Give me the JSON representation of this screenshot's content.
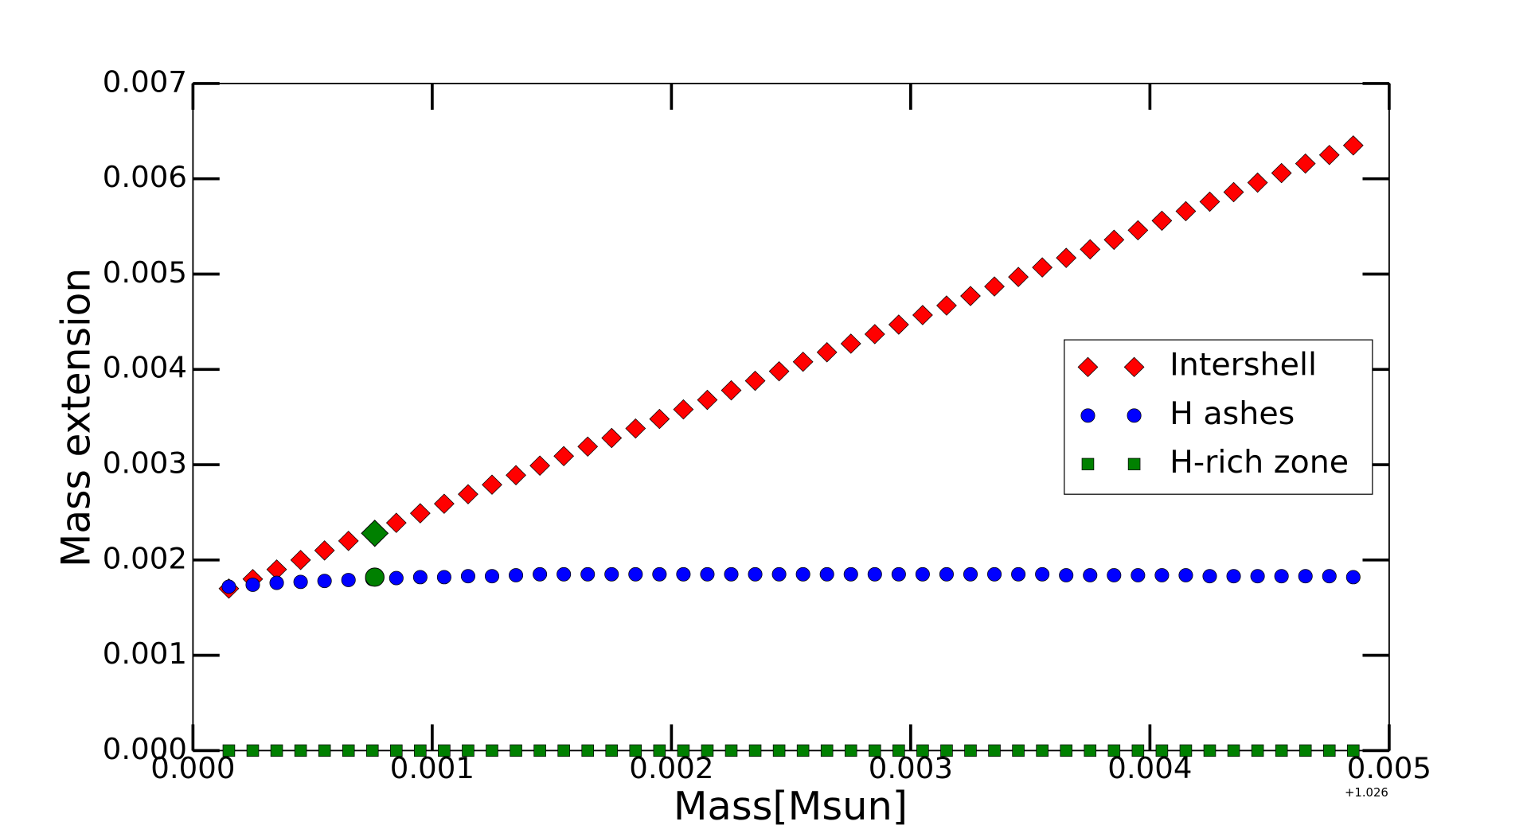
{
  "chart_data": {
    "type": "scatter",
    "xlabel": "Mass[Msun]",
    "ylabel": "Mass extension",
    "x_offset_label": "+1.026",
    "xlim": [
      0,
      0.005
    ],
    "ylim": [
      0,
      0.007
    ],
    "xticks": [
      {
        "value": 0,
        "label": "0.000"
      },
      {
        "value": 0.001,
        "label": "0.001"
      },
      {
        "value": 0.002,
        "label": "0.002"
      },
      {
        "value": 0.003,
        "label": "0.003"
      },
      {
        "value": 0.004,
        "label": "0.004"
      },
      {
        "value": 0.005,
        "label": "0.005"
      }
    ],
    "yticks": [
      {
        "value": 0,
        "label": "0.000"
      },
      {
        "value": 0.001,
        "label": "0.001"
      },
      {
        "value": 0.002,
        "label": "0.002"
      },
      {
        "value": 0.003,
        "label": "0.003"
      },
      {
        "value": 0.004,
        "label": "0.004"
      },
      {
        "value": 0.005,
        "label": "0.005"
      },
      {
        "value": 0.006,
        "label": "0.006"
      },
      {
        "value": 0.007,
        "label": "0.007"
      }
    ],
    "legend": "right",
    "x": [
      0.00015,
      0.00025,
      0.00035,
      0.00045,
      0.00055,
      0.00065,
      0.00075,
      0.00085,
      0.00095,
      0.00105,
      0.00115,
      0.00125,
      0.00135,
      0.00145,
      0.00155,
      0.00165,
      0.00175,
      0.00185,
      0.00195,
      0.00205,
      0.00215,
      0.00225,
      0.00235,
      0.00245,
      0.00255,
      0.00265,
      0.00275,
      0.00285,
      0.00295,
      0.00305,
      0.00315,
      0.00325,
      0.00335,
      0.00345,
      0.00355,
      0.00365,
      0.00375,
      0.00385,
      0.00395,
      0.00405,
      0.00415,
      0.00425,
      0.00435,
      0.00445,
      0.00455,
      0.00465,
      0.00475,
      0.00485
    ],
    "series": [
      {
        "name": "Intershell",
        "color": "#ff0000",
        "marker": "diamond",
        "values": [
          0.0017,
          0.0018,
          0.0019,
          0.002,
          0.0021,
          0.0022,
          0.00229,
          0.00239,
          0.00249,
          0.00259,
          0.00269,
          0.00279,
          0.00289,
          0.00299,
          0.00309,
          0.00319,
          0.00328,
          0.00338,
          0.00348,
          0.00358,
          0.00368,
          0.00378,
          0.00388,
          0.00398,
          0.00408,
          0.00418,
          0.00427,
          0.00437,
          0.00447,
          0.00457,
          0.00467,
          0.00477,
          0.00487,
          0.00497,
          0.00507,
          0.00517,
          0.00526,
          0.00536,
          0.00546,
          0.00556,
          0.00566,
          0.00576,
          0.00586,
          0.00596,
          0.00606,
          0.00616,
          0.00625,
          0.00635
        ]
      },
      {
        "name": "H ashes",
        "color": "#0000ff",
        "marker": "circle",
        "values": [
          0.00172,
          0.00174,
          0.00176,
          0.00177,
          0.00178,
          0.00179,
          0.0018,
          0.00181,
          0.00182,
          0.00182,
          0.00183,
          0.00183,
          0.00184,
          0.00185,
          0.00185,
          0.00185,
          0.00185,
          0.00185,
          0.00185,
          0.00185,
          0.00185,
          0.00185,
          0.00185,
          0.00185,
          0.00185,
          0.00185,
          0.00185,
          0.00185,
          0.00185,
          0.00185,
          0.00185,
          0.00185,
          0.00185,
          0.00185,
          0.00185,
          0.00184,
          0.00184,
          0.00184,
          0.00184,
          0.00184,
          0.00184,
          0.00183,
          0.00183,
          0.00183,
          0.00183,
          0.00183,
          0.00183,
          0.00182
        ]
      },
      {
        "name": "H-rich zone",
        "color": "#008000",
        "marker": "square",
        "values": [
          0,
          0,
          0,
          0,
          0,
          0,
          0,
          0,
          0,
          0,
          0,
          0,
          0,
          0,
          0,
          0,
          0,
          0,
          0,
          0,
          0,
          0,
          0,
          0,
          0,
          0,
          0,
          0,
          0,
          0,
          0,
          0,
          0,
          0,
          0,
          0,
          0,
          0,
          0,
          0,
          0,
          0,
          0,
          0,
          0,
          0,
          0,
          0
        ]
      }
    ],
    "highlight_points": [
      {
        "x": 0.00076,
        "y": 0.00228,
        "marker": "diamond",
        "color": "#008000"
      },
      {
        "x": 0.00076,
        "y": 0.00182,
        "marker": "circle",
        "color": "#008000"
      }
    ]
  }
}
